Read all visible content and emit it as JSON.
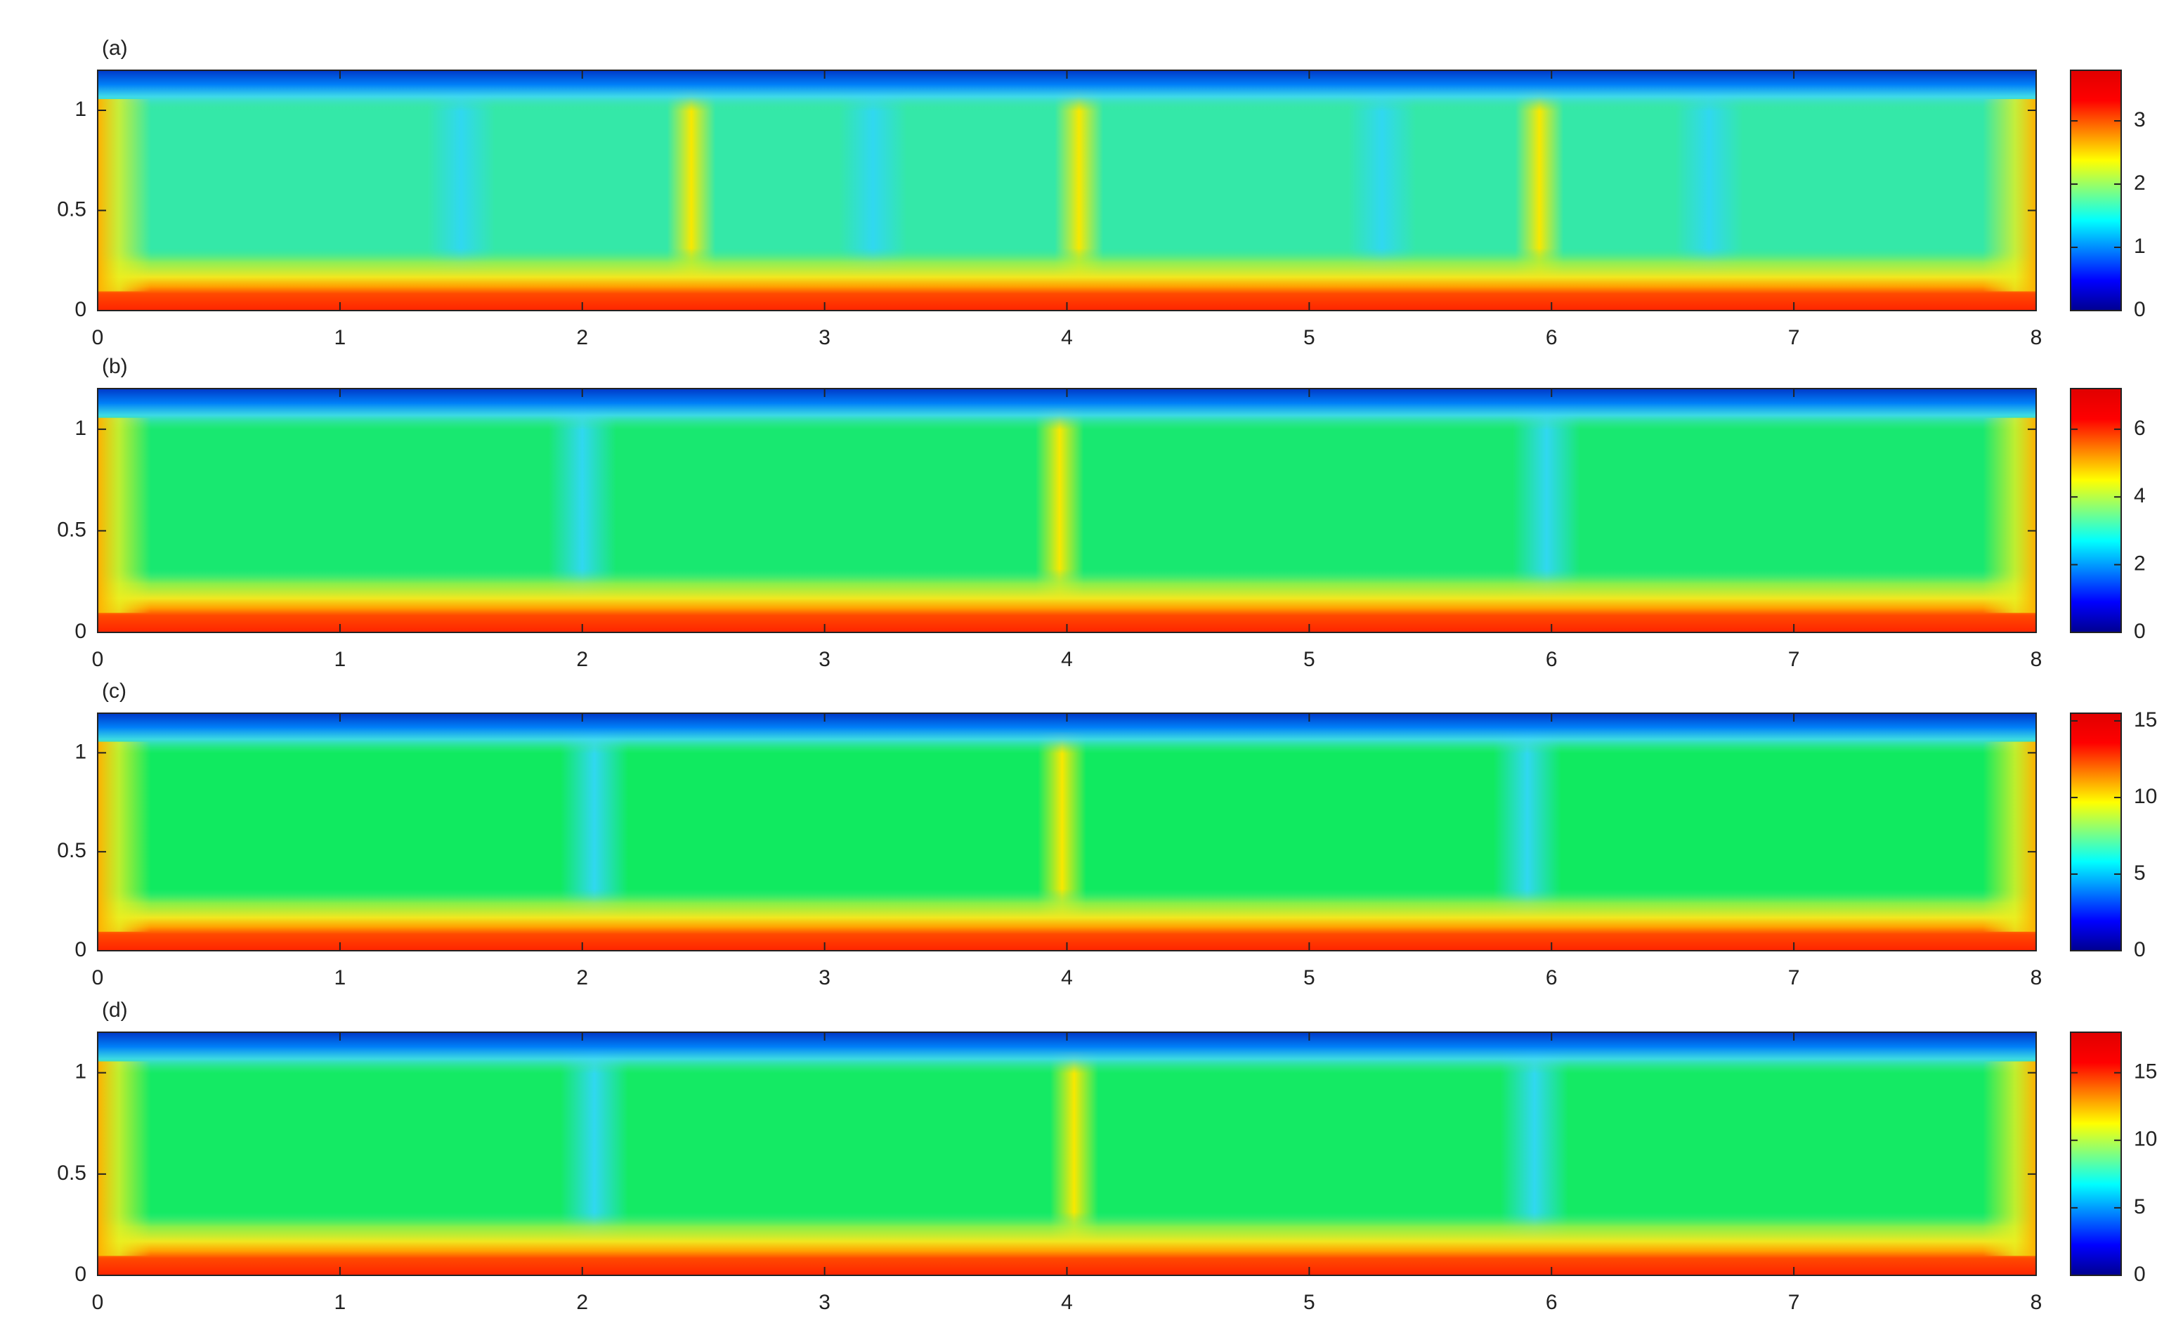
{
  "chart_data": [
    {
      "type": "heatmap",
      "title": "(a)",
      "colormap": "jet",
      "xlim": [
        0,
        8
      ],
      "ylim": [
        0,
        1.2
      ],
      "xticks": [
        0,
        1,
        2,
        3,
        4,
        5,
        6,
        7,
        8
      ],
      "yticks": [
        0,
        0.5,
        1
      ],
      "clim": [
        0,
        3.8
      ],
      "cticks": [
        0,
        1,
        2,
        3
      ],
      "cold_plumes_x": [
        1.5,
        3.2,
        5.3,
        6.65
      ],
      "hot_plumes_x": [
        2.45,
        4.05,
        5.95
      ]
    },
    {
      "type": "heatmap",
      "title": "(b)",
      "colormap": "jet",
      "xlim": [
        0,
        8
      ],
      "ylim": [
        0,
        1.2
      ],
      "xticks": [
        0,
        1,
        2,
        3,
        4,
        5,
        6,
        7,
        8
      ],
      "yticks": [
        0,
        0.5,
        1
      ],
      "clim": [
        0,
        7.2
      ],
      "cticks": [
        0,
        2,
        4,
        6
      ],
      "cold_plumes_x": [
        2,
        5.98
      ],
      "hot_plumes_x": [
        3.97
      ]
    },
    {
      "type": "heatmap",
      "title": "(c)",
      "colormap": "jet",
      "xlim": [
        0,
        8
      ],
      "ylim": [
        0,
        1.2
      ],
      "xticks": [
        0,
        1,
        2,
        3,
        4,
        5,
        6,
        7,
        8
      ],
      "yticks": [
        0,
        0.5,
        1
      ],
      "clim": [
        0,
        15.5
      ],
      "cticks": [
        0,
        5,
        10,
        15
      ],
      "cold_plumes_x": [
        2.05,
        5.9
      ],
      "hot_plumes_x": [
        3.98
      ]
    },
    {
      "type": "heatmap",
      "title": "(d)",
      "colormap": "jet",
      "xlim": [
        0,
        8
      ],
      "ylim": [
        0,
        1.2
      ],
      "xticks": [
        0,
        1,
        2,
        3,
        4,
        5,
        6,
        7,
        8
      ],
      "yticks": [
        0,
        0.5,
        1
      ],
      "clim": [
        0,
        18
      ],
      "cticks": [
        0,
        5,
        10,
        15
      ],
      "cold_plumes_x": [
        2.05,
        5.93
      ],
      "hot_plumes_x": [
        4.03
      ]
    }
  ]
}
